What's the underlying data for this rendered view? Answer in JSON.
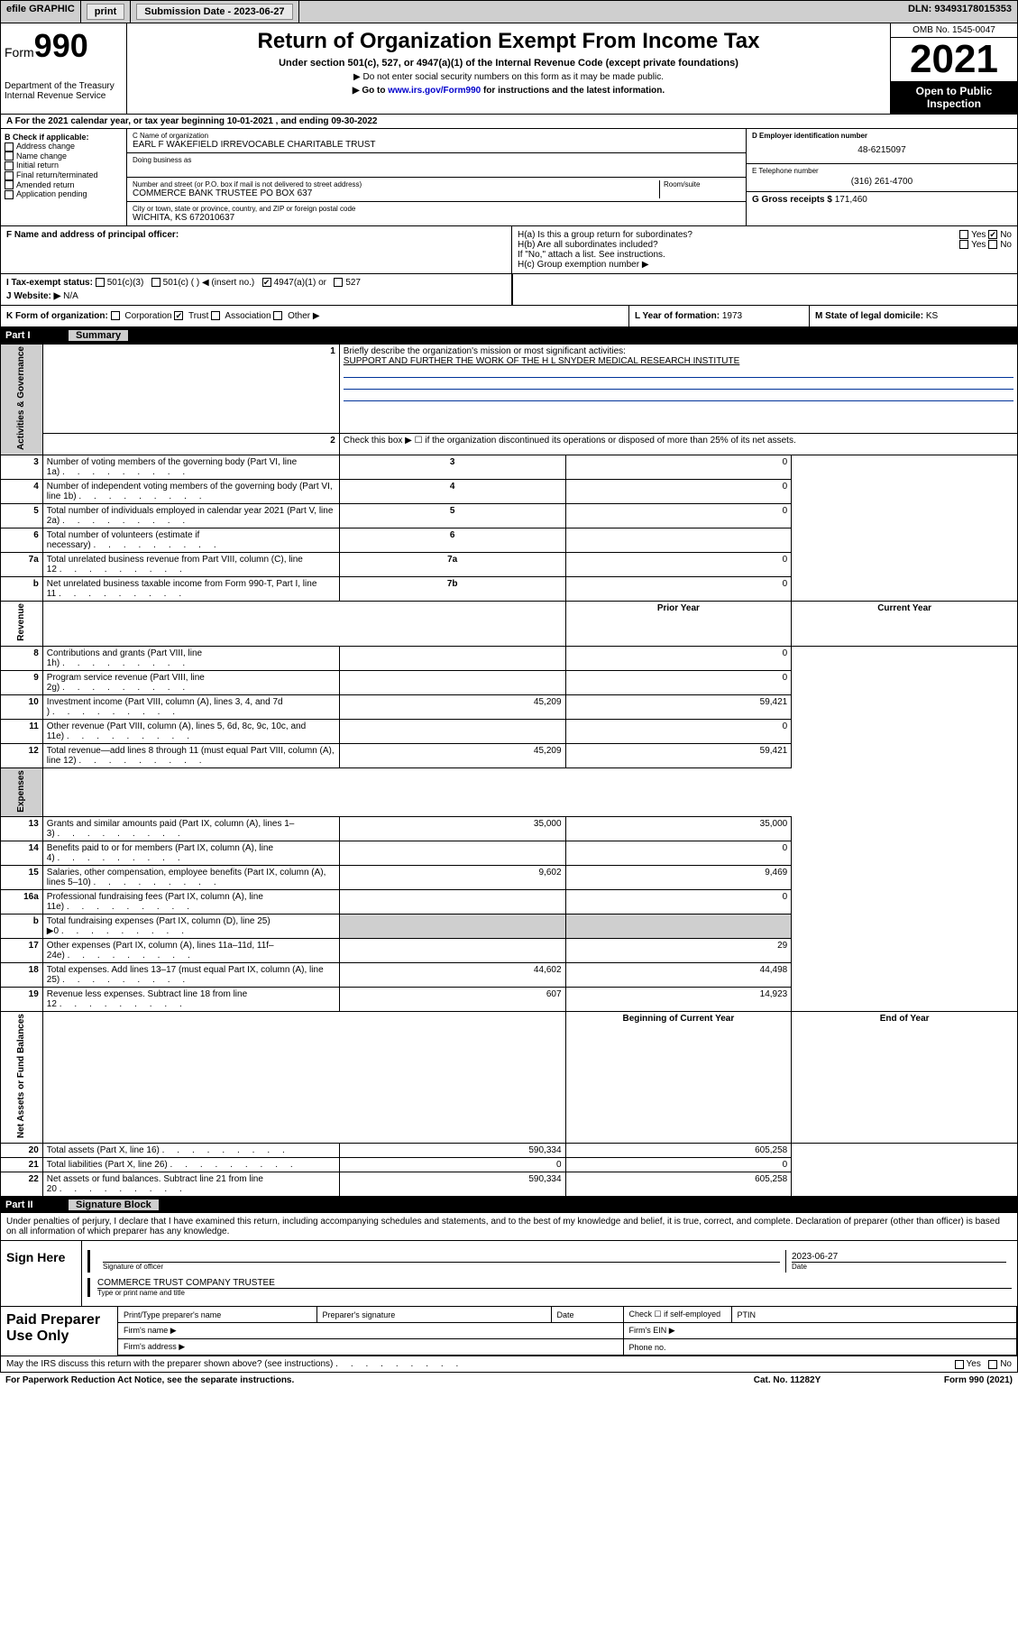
{
  "topbar": {
    "efile": "efile GRAPHIC",
    "print": "print",
    "sub_label": "Submission Date - ",
    "sub_date": "2023-06-27",
    "dln": "DLN: 93493178015353"
  },
  "header": {
    "form_word": "Form",
    "form_num": "990",
    "dept": "Department of the Treasury",
    "irs": "Internal Revenue Service",
    "title": "Return of Organization Exempt From Income Tax",
    "sub": "Under section 501(c), 527, or 4947(a)(1) of the Internal Revenue Code (except private foundations)",
    "instr1": "▶ Do not enter social security numbers on this form as it may be made public.",
    "instr2_pre": "▶ Go to ",
    "instr2_link": "www.irs.gov/Form990",
    "instr2_post": " for instructions and the latest information.",
    "omb": "OMB No. 1545-0047",
    "year": "2021",
    "open": "Open to Public Inspection"
  },
  "period": {
    "text": "A For the 2021 calendar year, or tax year beginning 10-01-2021    , and ending 09-30-2022"
  },
  "boxB": {
    "label": "B Check if applicable:",
    "opts": [
      "Address change",
      "Name change",
      "Initial return",
      "Final return/terminated",
      "Amended return",
      "Application pending"
    ]
  },
  "boxC": {
    "name_lbl": "C Name of organization",
    "name": "EARL F WAKEFIELD IRREVOCABLE CHARITABLE TRUST",
    "dba_lbl": "Doing business as",
    "addr_lbl": "Number and street (or P.O. box if mail is not delivered to street address)",
    "room_lbl": "Room/suite",
    "addr": "COMMERCE BANK TRUSTEE PO BOX 637",
    "city_lbl": "City or town, state or province, country, and ZIP or foreign postal code",
    "city": "WICHITA, KS  672010637"
  },
  "boxD": {
    "lbl": "D Employer identification number",
    "val": "48-6215097"
  },
  "boxE": {
    "lbl": "E Telephone number",
    "val": "(316) 261-4700"
  },
  "boxG": {
    "lbl": "G Gross receipts $ ",
    "val": "171,460"
  },
  "boxF": {
    "lbl": "F Name and address of principal officer:"
  },
  "boxH": {
    "ha": "H(a)  Is this a group return for subordinates?",
    "hb": "H(b)  Are all subordinates included?",
    "hb_note": "If \"No,\" attach a list. See instructions.",
    "hc": "H(c)  Group exemption number ▶",
    "yes": "Yes",
    "no": "No",
    "ha_checked": "no"
  },
  "boxI": {
    "lbl": "I    Tax-exempt status:",
    "o1": "501(c)(3)",
    "o2": "501(c) (  ) ◀ (insert no.)",
    "o3": "4947(a)(1) or",
    "o4": "527",
    "checked": "4947(a)(1) or"
  },
  "boxJ": {
    "lbl": "J    Website: ▶",
    "val": "N/A"
  },
  "boxK": {
    "lbl": "K Form of organization:",
    "opts": [
      "Corporation",
      "Trust",
      "Association",
      "Other ▶"
    ],
    "checked": "Trust"
  },
  "boxL": {
    "lbl": "L Year of formation: ",
    "val": "1973"
  },
  "boxM": {
    "lbl": "M State of legal domicile: ",
    "val": "KS"
  },
  "part1": {
    "num": "Part I",
    "title": "Summary"
  },
  "summary": {
    "q1_lbl": "Briefly describe the organization's mission or most significant activities:",
    "q1_val": "SUPPORT AND FURTHER THE WORK OF THE H L SNYDER MEDICAL RESEARCH INSTITUTE",
    "q2": "Check this box ▶ ☐  if the organization discontinued its operations or disposed of more than 25% of its net assets.",
    "vheads": {
      "gov": "Activities & Governance",
      "rev": "Revenue",
      "exp": "Expenses",
      "net": "Net Assets or Fund Balances"
    },
    "col_prior": "Prior Year",
    "col_curr": "Current Year",
    "col_begin": "Beginning of Current Year",
    "col_end": "End of Year",
    "gov_rows": [
      {
        "n": "3",
        "d": "Number of voting members of the governing body (Part VI, line 1a)",
        "m": "3",
        "v": "0"
      },
      {
        "n": "4",
        "d": "Number of independent voting members of the governing body (Part VI, line 1b)",
        "m": "4",
        "v": "0"
      },
      {
        "n": "5",
        "d": "Total number of individuals employed in calendar year 2021 (Part V, line 2a)",
        "m": "5",
        "v": "0"
      },
      {
        "n": "6",
        "d": "Total number of volunteers (estimate if necessary)",
        "m": "6",
        "v": ""
      },
      {
        "n": "7a",
        "d": "Total unrelated business revenue from Part VIII, column (C), line 12",
        "m": "7a",
        "v": "0"
      },
      {
        "n": "b",
        "d": "Net unrelated business taxable income from Form 990-T, Part I, line 11",
        "m": "7b",
        "v": "0"
      }
    ],
    "rev_rows": [
      {
        "n": "8",
        "d": "Contributions and grants (Part VIII, line 1h)",
        "p": "",
        "c": "0"
      },
      {
        "n": "9",
        "d": "Program service revenue (Part VIII, line 2g)",
        "p": "",
        "c": "0"
      },
      {
        "n": "10",
        "d": "Investment income (Part VIII, column (A), lines 3, 4, and 7d )",
        "p": "45,209",
        "c": "59,421"
      },
      {
        "n": "11",
        "d": "Other revenue (Part VIII, column (A), lines 5, 6d, 8c, 9c, 10c, and 11e)",
        "p": "",
        "c": "0"
      },
      {
        "n": "12",
        "d": "Total revenue—add lines 8 through 11 (must equal Part VIII, column (A), line 12)",
        "p": "45,209",
        "c": "59,421"
      }
    ],
    "exp_rows": [
      {
        "n": "13",
        "d": "Grants and similar amounts paid (Part IX, column (A), lines 1–3)",
        "p": "35,000",
        "c": "35,000"
      },
      {
        "n": "14",
        "d": "Benefits paid to or for members (Part IX, column (A), line 4)",
        "p": "",
        "c": "0"
      },
      {
        "n": "15",
        "d": "Salaries, other compensation, employee benefits (Part IX, column (A), lines 5–10)",
        "p": "9,602",
        "c": "9,469"
      },
      {
        "n": "16a",
        "d": "Professional fundraising fees (Part IX, column (A), line 11e)",
        "p": "",
        "c": "0"
      },
      {
        "n": "b",
        "d": "Total fundraising expenses (Part IX, column (D), line 25) ▶0",
        "p": "shade",
        "c": "shade"
      },
      {
        "n": "17",
        "d": "Other expenses (Part IX, column (A), lines 11a–11d, 11f–24e)",
        "p": "",
        "c": "29"
      },
      {
        "n": "18",
        "d": "Total expenses. Add lines 13–17 (must equal Part IX, column (A), line 25)",
        "p": "44,602",
        "c": "44,498"
      },
      {
        "n": "19",
        "d": "Revenue less expenses. Subtract line 18 from line 12",
        "p": "607",
        "c": "14,923"
      }
    ],
    "net_rows": [
      {
        "n": "20",
        "d": "Total assets (Part X, line 16)",
        "p": "590,334",
        "c": "605,258"
      },
      {
        "n": "21",
        "d": "Total liabilities (Part X, line 26)",
        "p": "0",
        "c": "0"
      },
      {
        "n": "22",
        "d": "Net assets or fund balances. Subtract line 21 from line 20",
        "p": "590,334",
        "c": "605,258"
      }
    ]
  },
  "part2": {
    "num": "Part II",
    "title": "Signature Block"
  },
  "sig": {
    "pen": "Under penalties of perjury, I declare that I have examined this return, including accompanying schedules and statements, and to the best of my knowledge and belief, it is true, correct, and complete. Declaration of preparer (other than officer) is based on all information of which preparer has any knowledge.",
    "sign_here": "Sign Here",
    "sig_officer": "Signature of officer",
    "date_lbl": "Date",
    "date_val": "2023-06-27",
    "name_title": "COMMERCE TRUST COMPANY TRUSTEE",
    "name_title_lbl": "Type or print name and title",
    "paid": "Paid Preparer Use Only",
    "pt_name": "Print/Type preparer's name",
    "pp_sig": "Preparer's signature",
    "chk_se": "Check ☐ if self-employed",
    "ptin": "PTIN",
    "firm_name": "Firm's name   ▶",
    "firm_ein": "Firm's EIN ▶",
    "firm_addr": "Firm's address ▶",
    "phone": "Phone no."
  },
  "footer": {
    "discuss": "May the IRS discuss this return with the preparer shown above? (see instructions)",
    "yes": "Yes",
    "no": "No",
    "pra": "For Paperwork Reduction Act Notice, see the separate instructions.",
    "cat": "Cat. No. 11282Y",
    "form": "Form 990 (2021)"
  }
}
